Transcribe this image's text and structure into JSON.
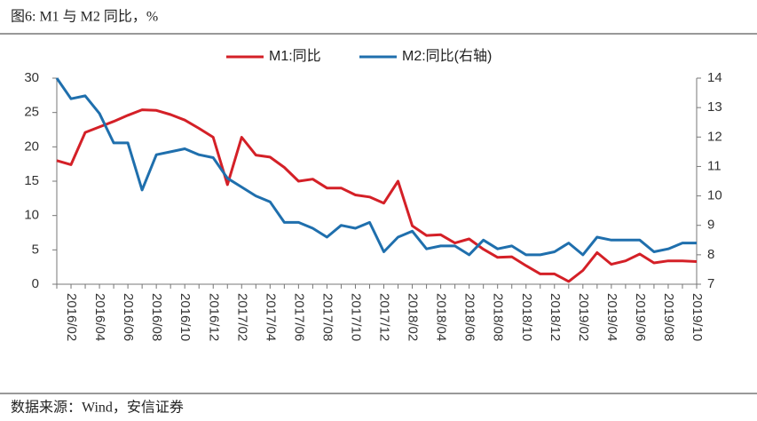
{
  "chart_data": {
    "type": "line",
    "title": "图6:  M1 与 M2 同比，%",
    "source": "数据来源：Wind，安信证券",
    "categories": [
      null,
      "2016/02",
      null,
      "2016/04",
      null,
      "2016/06",
      null,
      "2016/08",
      null,
      "2016/10",
      null,
      "2016/12",
      null,
      "2017/02",
      null,
      "2017/04",
      null,
      "2017/06",
      null,
      "2017/08",
      null,
      "2017/10",
      null,
      "2017/12",
      null,
      "2018/02",
      null,
      "2018/04",
      null,
      "2018/06",
      null,
      "2018/08",
      null,
      "2018/10",
      null,
      "2018/12",
      null,
      "2019/02",
      null,
      "2019/04",
      null,
      "2019/06",
      null,
      "2019/08",
      null,
      "2019/10"
    ],
    "series": [
      {
        "name": "M1:同比",
        "color": "#d42027",
        "values": [
          18.0,
          17.4,
          22.1,
          22.9,
          23.7,
          24.6,
          25.4,
          25.3,
          24.7,
          23.9,
          22.7,
          21.4,
          14.5,
          21.4,
          18.8,
          18.5,
          17.0,
          15.0,
          15.3,
          14.0,
          14.0,
          13.0,
          12.7,
          11.8,
          15.0,
          8.5,
          7.1,
          7.2,
          6.0,
          6.6,
          5.1,
          3.9,
          4.0,
          2.7,
          1.5,
          1.5,
          0.4,
          2.0,
          4.6,
          2.9,
          3.4,
          4.4,
          3.1,
          3.4,
          3.4,
          3.3
        ]
      },
      {
        "name": "M2:同比(右轴)",
        "color": "#1f6fad",
        "axis": "y2",
        "values": [
          14.0,
          13.3,
          13.4,
          12.8,
          11.8,
          11.8,
          10.2,
          11.4,
          11.5,
          11.6,
          11.4,
          11.3,
          10.6,
          10.3,
          10.0,
          9.8,
          9.1,
          9.1,
          8.9,
          8.6,
          9.0,
          8.9,
          9.1,
          8.1,
          8.6,
          8.8,
          8.2,
          8.3,
          8.3,
          8.0,
          8.5,
          8.2,
          8.3,
          8.0,
          8.0,
          8.1,
          8.4,
          8.0,
          8.6,
          8.5,
          8.5,
          8.5,
          8.1,
          8.2,
          8.4,
          8.4
        ]
      }
    ],
    "ylim": [
      0,
      30
    ],
    "yticks": [
      0,
      5,
      10,
      15,
      20,
      25,
      30
    ],
    "y2lim": [
      7,
      14
    ],
    "y2ticks": [
      7,
      8,
      9,
      10,
      11,
      12,
      13,
      14
    ],
    "legend": "top"
  }
}
